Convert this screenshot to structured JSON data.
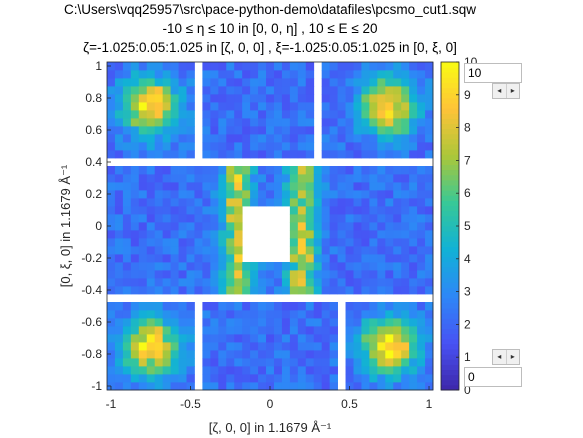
{
  "titles": {
    "line1": "C:\\Users\\vqq25957\\src\\pace-python-demo\\datafiles\\pcsmo_cut1.sqw",
    "line2": "-10 ≤ η ≤ 10 in [0, 0, η] , 10 ≤ E ≤ 20",
    "line3": "ζ=-1.025:0.05:1.025 in [ζ, 0, 0] , ξ=-1.025:0.05:1.025 in [0, ξ, 0]"
  },
  "controls": {
    "upper_value": "10",
    "lower_value": "0",
    "left_arrow": "◂",
    "right_arrow": "▸"
  },
  "chart_data": {
    "type": "heatmap",
    "xlabel": "[ζ, 0, 0] in 1.1679 Å⁻¹",
    "ylabel": "[0, ξ, 0] in 1.1679 Å⁻¹",
    "xlim": [
      -1.025,
      1.025
    ],
    "ylim": [
      -1.025,
      1.025
    ],
    "x_ticks": [
      "-1",
      "-0.5",
      "0",
      "0.5",
      "1"
    ],
    "y_ticks": [
      "-1",
      "-0.8",
      "-0.6",
      "-0.4",
      "-0.2",
      "0",
      "0.2",
      "0.4",
      "0.6",
      "0.8",
      "1"
    ],
    "colorbar": {
      "colormap": "parula",
      "clim": [
        0,
        10
      ],
      "ticks": [
        "0",
        "1",
        "2",
        "3",
        "4",
        "5",
        "6",
        "7",
        "8",
        "9",
        "10"
      ]
    },
    "bin_step": 0.05,
    "peaks": [
      {
        "zeta": -0.75,
        "xi": 0.75,
        "intensity": 9.5
      },
      {
        "zeta": 0.75,
        "xi": 0.75,
        "intensity": 9.5
      },
      {
        "zeta": -0.75,
        "xi": -0.75,
        "intensity": 9.5
      },
      {
        "zeta": 0.75,
        "xi": -0.75,
        "intensity": 9.5
      }
    ],
    "ridges": [
      {
        "zeta": -0.2,
        "intensity": 8
      },
      {
        "zeta": 0.2,
        "intensity": 8
      }
    ],
    "background_intensity": 2,
    "missing_regions": [
      {
        "zeta": [
          -0.45,
          -0.4
        ],
        "xi": [
          0.45,
          1.025
        ]
      },
      {
        "zeta": [
          0.3,
          0.35
        ],
        "xi": [
          0.45,
          1.025
        ]
      },
      {
        "zeta": [
          -1.025,
          1.025
        ],
        "xi": [
          0.4,
          0.45
        ]
      },
      {
        "zeta": [
          -1.025,
          1.025
        ],
        "xi": [
          -0.45,
          -0.4
        ]
      },
      {
        "zeta": [
          -0.15,
          0.15
        ],
        "xi": [
          -0.2,
          0.15
        ]
      },
      {
        "zeta": [
          -0.45,
          -0.4
        ],
        "xi": [
          -1.025,
          -0.45
        ]
      },
      {
        "zeta": [
          0.45,
          0.5
        ],
        "xi": [
          -1.025,
          -0.45
        ]
      }
    ]
  }
}
